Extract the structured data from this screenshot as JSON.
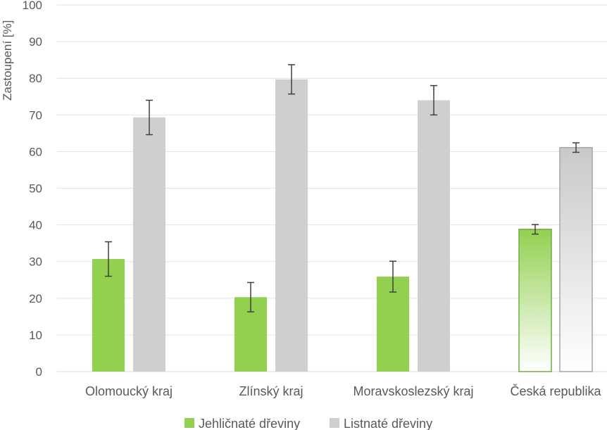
{
  "chart_data": {
    "type": "bar",
    "ylabel": "Zastoupení [%]",
    "xlabel": "",
    "ylim": [
      0,
      100
    ],
    "yticks": [
      0,
      10,
      20,
      30,
      40,
      50,
      60,
      70,
      80,
      90,
      100
    ],
    "grid": true,
    "legend_position": "bottom",
    "categories": [
      "Olomoucký kraj",
      "Zlínský kraj",
      "Moravskoslezský kraj",
      "Česká republika"
    ],
    "series": [
      {
        "name": "Jehličnaté dřeviny",
        "color": "#92d050",
        "values": [
          30.7,
          20.3,
          25.9,
          38.8
        ],
        "error": [
          4.7,
          4.0,
          4.2,
          1.3
        ]
      },
      {
        "name": "Listnaté dřeviny",
        "color": "#d0cfd0",
        "values": [
          69.3,
          79.7,
          74.0,
          61.1
        ],
        "error": [
          4.7,
          4.0,
          4.0,
          1.3
        ]
      }
    ],
    "highlight_category": "Česká republika"
  }
}
